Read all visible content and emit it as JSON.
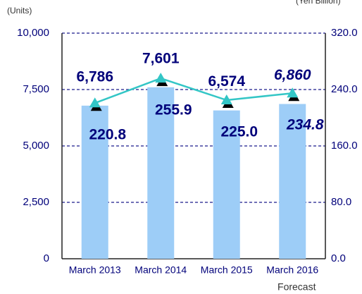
{
  "chart_data": {
    "type": "bar",
    "y_label": "(Units)",
    "y2_label": "(Yen Billion)",
    "categories": [
      "March 2013",
      "March 2014",
      "March 2015",
      "March 2016"
    ],
    "forecast_note": "Forecast",
    "series": [
      {
        "name": "Units",
        "type": "bar",
        "color": "#9dcdf7",
        "values": [
          6786,
          7601,
          6574,
          6860
        ],
        "value_labels": [
          "6,786",
          "7,601",
          "6,574",
          "6,860"
        ]
      },
      {
        "name": "Yen Billion",
        "type": "line",
        "axis": "y2",
        "color": "#33c6c6",
        "values": [
          220.8,
          255.9,
          225.0,
          234.8
        ],
        "value_labels": [
          "220.8",
          "255.9",
          "225.0",
          "234.8"
        ]
      }
    ],
    "ylim": [
      0,
      10000
    ],
    "yticks": [
      0,
      {
        "value": 2500,
        "label": "2,500"
      },
      {
        "value": 5000,
        "label": "5,000"
      },
      {
        "value": 7500,
        "label": "7,500"
      },
      {
        "value": 10000,
        "label": "10,000"
      }
    ],
    "y2lim": [
      0,
      320
    ],
    "y2ticks": [
      {
        "value": 0,
        "label": "0.0"
      },
      {
        "value": 80,
        "label": "80.0"
      },
      {
        "value": 160,
        "label": "160.0"
      },
      {
        "value": 240,
        "label": "240.0"
      },
      {
        "value": 320,
        "label": "320.0"
      }
    ],
    "grid": true
  }
}
